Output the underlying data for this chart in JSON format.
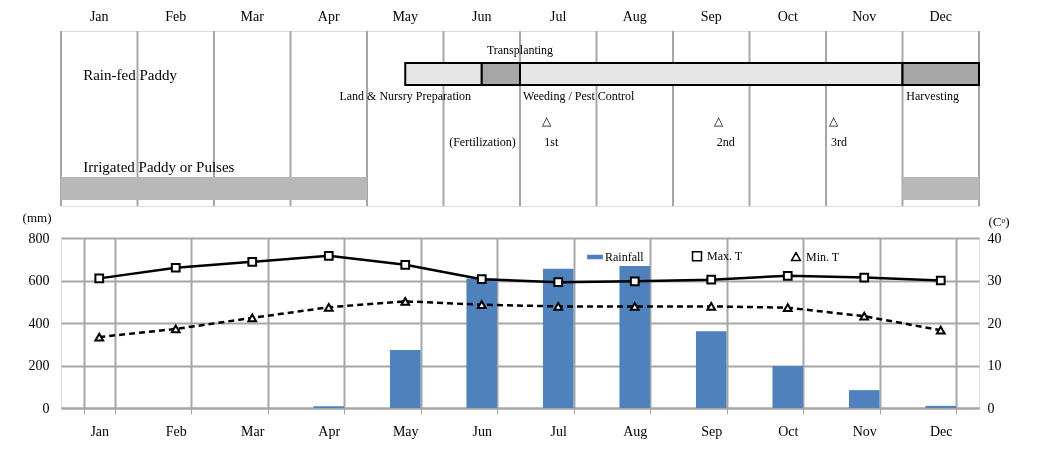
{
  "chart_data": [
    {
      "type": "other",
      "categories": [
        "Jan",
        "Feb",
        "Mar",
        "Apr",
        "May",
        "Jun",
        "Jul",
        "Aug",
        "Sep",
        "Oct",
        "Nov",
        "Dec"
      ],
      "annotations": [
        "Rain-fed Paddy",
        "Transplanting",
        "Land & Nursry Preparation",
        "Weeding / Pest Control",
        "Harvesting",
        "△",
        "△",
        "△",
        "(Fertilization)",
        "1st",
        "2nd",
        "3rd",
        "Irrigated Paddy or Pulses"
      ]
    },
    {
      "type": "bar",
      "grid": true,
      "legend": "top right",
      "categories": [
        "Jan",
        "Feb",
        "Mar",
        "Apr",
        "May",
        "Jun",
        "Jul",
        "Aug",
        "Sep",
        "Oct",
        "Nov",
        "Dec"
      ],
      "ylabel": "(mm)",
      "y2label": "(Cᵒ)",
      "ylim": [
        0,
        800
      ],
      "yticks": [
        0,
        200,
        400,
        600,
        800
      ],
      "y2lim": [
        0,
        40
      ],
      "y2ticks": [
        0,
        10,
        20,
        30,
        40
      ],
      "series": [
        {
          "name": "Rainfall",
          "type": "bar",
          "color": "#4f81bd",
          "values": [
            0,
            0,
            0,
            8,
            273,
            610,
            655,
            668,
            361,
            198,
            84,
            10
          ]
        },
        {
          "name": "Max. T",
          "type": "line",
          "axis": "y2",
          "color": "#000000",
          "marker": "square",
          "line_style": "solid",
          "values": [
            30.5,
            33.0,
            34.4,
            35.8,
            33.7,
            30.3,
            29.6,
            29.8,
            30.2,
            31.1,
            30.7,
            30.0
          ]
        },
        {
          "name": "Min. T",
          "type": "line",
          "axis": "y2",
          "color": "#000000",
          "marker": "triangle",
          "line_style": "dashed",
          "values": [
            16.7,
            18.6,
            21.2,
            23.7,
            25.1,
            24.3,
            23.9,
            23.9,
            23.9,
            23.6,
            21.6,
            18.3
          ]
        }
      ]
    }
  ]
}
